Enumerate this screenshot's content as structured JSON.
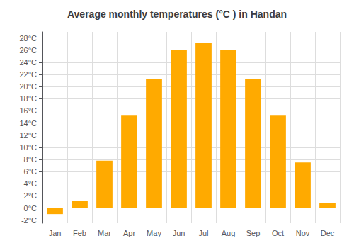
{
  "chart_data": {
    "type": "bar",
    "title": "Average monthly temperatures (°C ) in Handan",
    "categories": [
      "Jan",
      "Feb",
      "Mar",
      "Apr",
      "May",
      "Jun",
      "Jul",
      "Aug",
      "Sep",
      "Oct",
      "Nov",
      "Dec"
    ],
    "values": [
      -1.0,
      1.2,
      7.8,
      15.2,
      21.2,
      26.0,
      27.2,
      26.0,
      21.2,
      15.2,
      7.5,
      0.8
    ],
    "color": "#FFAA00",
    "ylim": [
      -2.5,
      29
    ],
    "yticks": [
      {
        "value": -2,
        "label": "-2°C"
      },
      {
        "value": 0,
        "label": "0°C"
      },
      {
        "value": 2,
        "label": "2°C"
      },
      {
        "value": 4,
        "label": "4°C"
      },
      {
        "value": 6,
        "label": "6°C"
      },
      {
        "value": 8,
        "label": "8°C"
      },
      {
        "value": 10,
        "label": "10°C"
      },
      {
        "value": 12,
        "label": "12°C"
      },
      {
        "value": 14,
        "label": "14°C"
      },
      {
        "value": 16,
        "label": "16°C"
      },
      {
        "value": 18,
        "label": "18°C"
      },
      {
        "value": 20,
        "label": "20°C"
      },
      {
        "value": 22,
        "label": "22°C"
      },
      {
        "value": 24,
        "label": "24°C"
      },
      {
        "value": 26,
        "label": "26°C"
      },
      {
        "value": 28,
        "label": "28°C"
      }
    ],
    "grid": true
  }
}
